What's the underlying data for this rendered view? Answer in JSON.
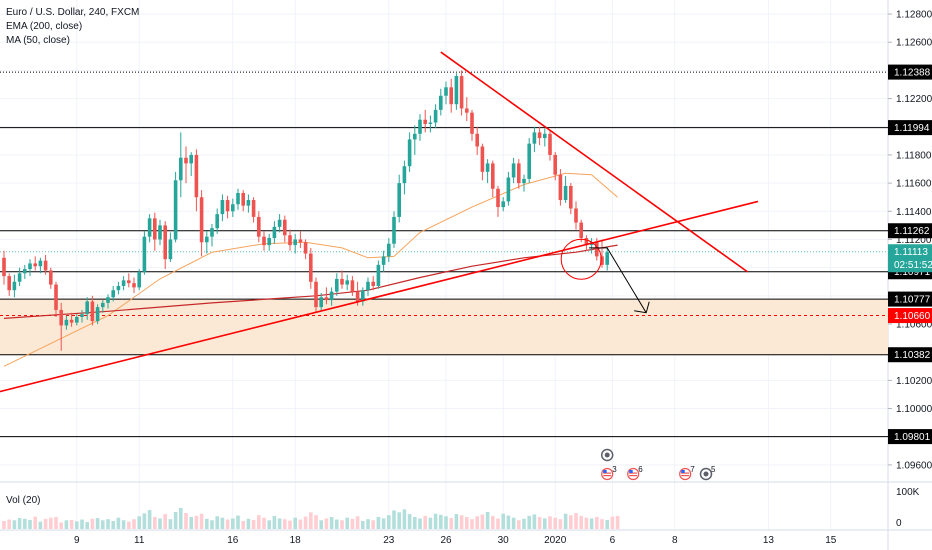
{
  "header": {
    "title": "Euro / U.S. Dollar, 240, FXCM",
    "indicator_1": "EMA (200, close)",
    "indicator_2": "MA (50, close)"
  },
  "volume_pane": {
    "label": "Vol (20)",
    "axis_ticks": [
      "100K",
      "0"
    ]
  },
  "chart_data": {
    "type": "candlestick",
    "symbol": "EURUSD",
    "timeframe": "240",
    "ylim": [
      1.095,
      1.1285
    ],
    "y_ticks": [
      "1.12800",
      "1.12600",
      "1.12400",
      "1.12200",
      "1.12000",
      "1.11800",
      "1.11600",
      "1.11400",
      "1.11200",
      "1.11000",
      "1.10800",
      "1.10600",
      "1.10400",
      "1.10200",
      "1.10000",
      "1.09800",
      "1.09600"
    ],
    "x_ticks": [
      "9",
      "11",
      "16",
      "18",
      "23",
      "26",
      "30",
      "2020",
      "6",
      "8",
      "13",
      "15"
    ],
    "horizontal_levels": [
      {
        "value": 1.12388,
        "label": "1.12388",
        "style": "dotted",
        "color": "#000000"
      },
      {
        "value": 1.11994,
        "label": "1.11994",
        "style": "solid",
        "color": "#000000"
      },
      {
        "value": 1.11262,
        "label": "1.11262",
        "style": "solid",
        "color": "#000000"
      },
      {
        "value": 1.10971,
        "label": "1.10971",
        "style": "solid",
        "color": "#000000"
      },
      {
        "value": 1.10777,
        "label": "1.10777",
        "style": "solid",
        "color": "#000000"
      },
      {
        "value": 1.1066,
        "label": "1.10660",
        "style": "dashed",
        "color": "#ff0000"
      },
      {
        "value": 1.10382,
        "label": "1.10382",
        "style": "solid",
        "color": "#000000"
      },
      {
        "value": 1.09801,
        "label": "1.09801",
        "style": "solid",
        "color": "#000000"
      }
    ],
    "zone": {
      "from": 1.10382,
      "to": 1.10777,
      "color": "#fbe9d6"
    },
    "current_price": {
      "value": 1.11113,
      "label": "1.11113",
      "countdown": "02:51:52",
      "color": "#26a69a"
    },
    "ohlc": [
      [
        1.1107,
        1.1112,
        1.1088,
        1.1094
      ],
      [
        1.1094,
        1.1096,
        1.108,
        1.1084
      ],
      [
        1.1084,
        1.1095,
        1.1079,
        1.109
      ],
      [
        1.109,
        1.11,
        1.1087,
        1.1096
      ],
      [
        1.1096,
        1.1102,
        1.1092,
        1.1099
      ],
      [
        1.1099,
        1.1106,
        1.1094,
        1.1103
      ],
      [
        1.1103,
        1.1108,
        1.1098,
        1.1101
      ],
      [
        1.1101,
        1.1107,
        1.1096,
        1.1105
      ],
      [
        1.1105,
        1.1109,
        1.1095,
        1.1098
      ],
      [
        1.1098,
        1.11,
        1.1085,
        1.1088
      ],
      [
        1.1088,
        1.109,
        1.1065,
        1.107
      ],
      [
        1.107,
        1.1075,
        1.1041,
        1.1059
      ],
      [
        1.1059,
        1.1066,
        1.1056,
        1.1063
      ],
      [
        1.1063,
        1.1068,
        1.1058,
        1.1061
      ],
      [
        1.1061,
        1.1067,
        1.1059,
        1.1065
      ],
      [
        1.1065,
        1.107,
        1.1061,
        1.1067
      ],
      [
        1.1067,
        1.1079,
        1.1063,
        1.1076
      ],
      [
        1.1076,
        1.108,
        1.1059,
        1.1062
      ],
      [
        1.1062,
        1.1074,
        1.106,
        1.1072
      ],
      [
        1.1072,
        1.1077,
        1.1068,
        1.1075
      ],
      [
        1.1075,
        1.1081,
        1.1071,
        1.1079
      ],
      [
        1.1079,
        1.1087,
        1.1076,
        1.1084
      ],
      [
        1.1084,
        1.109,
        1.1081,
        1.1087
      ],
      [
        1.1087,
        1.1094,
        1.1084,
        1.1091
      ],
      [
        1.1091,
        1.1096,
        1.1086,
        1.1089
      ],
      [
        1.1089,
        1.1093,
        1.1082,
        1.1086
      ],
      [
        1.1086,
        1.1099,
        1.1084,
        1.1097
      ],
      [
        1.1097,
        1.1126,
        1.1095,
        1.1122
      ],
      [
        1.1122,
        1.1138,
        1.1118,
        1.1135
      ],
      [
        1.1135,
        1.1139,
        1.1112,
        1.112
      ],
      [
        1.112,
        1.1134,
        1.1116,
        1.113
      ],
      [
        1.113,
        1.1133,
        1.1099,
        1.1106
      ],
      [
        1.1106,
        1.1125,
        1.1104,
        1.112
      ],
      [
        1.112,
        1.1168,
        1.1118,
        1.1162
      ],
      [
        1.1162,
        1.1196,
        1.115,
        1.1178
      ],
      [
        1.1178,
        1.1186,
        1.116,
        1.1174
      ],
      [
        1.1174,
        1.1182,
        1.1165,
        1.118
      ],
      [
        1.118,
        1.1184,
        1.114,
        1.115
      ],
      [
        1.115,
        1.1155,
        1.1108,
        1.1118
      ],
      [
        1.1118,
        1.1126,
        1.111,
        1.1122
      ],
      [
        1.1122,
        1.1131,
        1.1115,
        1.1128
      ],
      [
        1.1128,
        1.1142,
        1.1124,
        1.1138
      ],
      [
        1.1138,
        1.1152,
        1.1133,
        1.1148
      ],
      [
        1.1148,
        1.1151,
        1.1135,
        1.114
      ],
      [
        1.114,
        1.1149,
        1.1136,
        1.1145
      ],
      [
        1.1145,
        1.1156,
        1.1141,
        1.1153
      ],
      [
        1.1153,
        1.1155,
        1.114,
        1.1144
      ],
      [
        1.1144,
        1.1152,
        1.1139,
        1.1148
      ],
      [
        1.1148,
        1.115,
        1.1132,
        1.1136
      ],
      [
        1.1136,
        1.114,
        1.1118,
        1.1122
      ],
      [
        1.1122,
        1.1126,
        1.1112,
        1.1116
      ],
      [
        1.1116,
        1.1124,
        1.1112,
        1.1121
      ],
      [
        1.1121,
        1.1133,
        1.1117,
        1.1129
      ],
      [
        1.1129,
        1.1138,
        1.1125,
        1.1134
      ],
      [
        1.1134,
        1.1137,
        1.1118,
        1.1123
      ],
      [
        1.1123,
        1.1127,
        1.1112,
        1.1116
      ],
      [
        1.1116,
        1.1124,
        1.111,
        1.112
      ],
      [
        1.112,
        1.1126,
        1.1114,
        1.1118
      ],
      [
        1.1118,
        1.112,
        1.1106,
        1.111
      ],
      [
        1.111,
        1.1114,
        1.1085,
        1.109
      ],
      [
        1.109,
        1.1093,
        1.1068,
        1.1072
      ],
      [
        1.1072,
        1.1082,
        1.1069,
        1.1079
      ],
      [
        1.1079,
        1.1086,
        1.1074,
        1.1077
      ],
      [
        1.1077,
        1.1086,
        1.1073,
        1.1083
      ],
      [
        1.1083,
        1.1096,
        1.108,
        1.1092
      ],
      [
        1.1092,
        1.1098,
        1.1085,
        1.1088
      ],
      [
        1.1088,
        1.1095,
        1.1084,
        1.1091
      ],
      [
        1.1091,
        1.1094,
        1.108,
        1.1083
      ],
      [
        1.1083,
        1.109,
        1.1073,
        1.1076
      ],
      [
        1.1076,
        1.1086,
        1.1073,
        1.1084
      ],
      [
        1.1084,
        1.1093,
        1.108,
        1.109
      ],
      [
        1.109,
        1.1094,
        1.1084,
        1.1087
      ],
      [
        1.1087,
        1.1105,
        1.1085,
        1.1102
      ],
      [
        1.1102,
        1.1112,
        1.1097,
        1.1108
      ],
      [
        1.1108,
        1.1121,
        1.1104,
        1.1117
      ],
      [
        1.1117,
        1.114,
        1.1114,
        1.1136
      ],
      [
        1.1136,
        1.1166,
        1.1132,
        1.116
      ],
      [
        1.116,
        1.1176,
        1.1152,
        1.1172
      ],
      [
        1.1172,
        1.1196,
        1.1168,
        1.1191
      ],
      [
        1.1191,
        1.1201,
        1.118,
        1.1195
      ],
      [
        1.1195,
        1.1209,
        1.119,
        1.1205
      ],
      [
        1.1205,
        1.1212,
        1.1196,
        1.1202
      ],
      [
        1.1202,
        1.1208,
        1.1196,
        1.1203
      ],
      [
        1.1203,
        1.1216,
        1.1199,
        1.1212
      ],
      [
        1.1212,
        1.1227,
        1.1208,
        1.1222
      ],
      [
        1.1222,
        1.1232,
        1.1216,
        1.1228
      ],
      [
        1.1228,
        1.1234,
        1.121,
        1.1216
      ],
      [
        1.1216,
        1.1238,
        1.1212,
        1.1236
      ],
      [
        1.1236,
        1.124,
        1.1208,
        1.1213
      ],
      [
        1.1213,
        1.1221,
        1.1204,
        1.121
      ],
      [
        1.121,
        1.1212,
        1.119,
        1.1195
      ],
      [
        1.1195,
        1.12,
        1.118,
        1.1186
      ],
      [
        1.1186,
        1.1188,
        1.1162,
        1.1168
      ],
      [
        1.1168,
        1.1177,
        1.116,
        1.1174
      ],
      [
        1.1174,
        1.1176,
        1.115,
        1.1156
      ],
      [
        1.1156,
        1.1158,
        1.1136,
        1.1143
      ],
      [
        1.1143,
        1.115,
        1.114,
        1.1147
      ],
      [
        1.1147,
        1.1168,
        1.1144,
        1.1164
      ],
      [
        1.1164,
        1.1178,
        1.116,
        1.1174
      ],
      [
        1.1174,
        1.1177,
        1.1156,
        1.116
      ],
      [
        1.116,
        1.1166,
        1.1154,
        1.1163
      ],
      [
        1.1163,
        1.1192,
        1.116,
        1.1188
      ],
      [
        1.1188,
        1.12,
        1.1182,
        1.1196
      ],
      [
        1.1196,
        1.12,
        1.1187,
        1.1192
      ],
      [
        1.1192,
        1.1199,
        1.1186,
        1.1195
      ],
      [
        1.1195,
        1.1197,
        1.1176,
        1.118
      ],
      [
        1.118,
        1.1182,
        1.1162,
        1.1166
      ],
      [
        1.1166,
        1.117,
        1.1144,
        1.1148
      ],
      [
        1.1148,
        1.1165,
        1.1146,
        1.1158
      ],
      [
        1.1158,
        1.116,
        1.1138,
        1.1142
      ],
      [
        1.1142,
        1.1147,
        1.1127,
        1.1132
      ],
      [
        1.1132,
        1.1134,
        1.1118,
        1.1121
      ],
      [
        1.1121,
        1.1123,
        1.1112,
        1.1116
      ],
      [
        1.1116,
        1.1121,
        1.111,
        1.1118
      ],
      [
        1.1118,
        1.1121,
        1.1105,
        1.1108
      ],
      [
        1.1108,
        1.112,
        1.11,
        1.1102
      ],
      [
        1.1102,
        1.1115,
        1.1098,
        1.1111
      ]
    ],
    "ema200": [
      [
        0,
        1.1064
      ],
      [
        20,
        1.1069
      ],
      [
        40,
        1.1075
      ],
      [
        60,
        1.108
      ],
      [
        70,
        1.1084
      ],
      [
        80,
        1.1093
      ],
      [
        90,
        1.1101
      ],
      [
        100,
        1.1107
      ],
      [
        110,
        1.1111
      ],
      [
        118,
        1.1116
      ]
    ],
    "ma50": [
      [
        0,
        1.103
      ],
      [
        10,
        1.1048
      ],
      [
        20,
        1.1066
      ],
      [
        30,
        1.1092
      ],
      [
        40,
        1.1111
      ],
      [
        50,
        1.1117
      ],
      [
        58,
        1.1118
      ],
      [
        65,
        1.1114
      ],
      [
        70,
        1.1107
      ],
      [
        75,
        1.1108
      ],
      [
        80,
        1.1125
      ],
      [
        90,
        1.1143
      ],
      [
        100,
        1.1159
      ],
      [
        108,
        1.1167
      ],
      [
        113,
        1.1166
      ],
      [
        118,
        1.115
      ]
    ],
    "trendlines": [
      {
        "name": "uptrend",
        "color": "#ff0000",
        "points": [
          [
            -3,
            1.101
          ],
          [
            145,
            1.1147
          ]
        ]
      },
      {
        "name": "downtrend",
        "color": "#ff0000",
        "points": [
          [
            84,
            1.1253
          ],
          [
            143,
            1.1097
          ]
        ]
      }
    ],
    "projection_arrow": {
      "color": "#000000",
      "points": [
        [
          112.5,
          1.1114
        ],
        [
          116,
          1.1114
        ],
        [
          123.5,
          1.1068
        ]
      ]
    },
    "highlight_circle": {
      "center": [
        111,
        1.1106
      ],
      "color": "#ff0000"
    },
    "events": [
      {
        "bar": 116,
        "label": "",
        "kind": "clock"
      },
      {
        "bar": 116,
        "label": "3",
        "kind": "flag"
      },
      {
        "bar": 121,
        "label": "6",
        "kind": "flag"
      },
      {
        "bar": 131,
        "label": "7",
        "kind": "flag"
      },
      {
        "bar": 135,
        "label": "5",
        "kind": "clock"
      }
    ],
    "volume": [
      22,
      26,
      24,
      30,
      28,
      25,
      34,
      20,
      28,
      31,
      33,
      18,
      24,
      25,
      21,
      26,
      19,
      28,
      30,
      24,
      27,
      22,
      31,
      24,
      20,
      27,
      35,
      43,
      52,
      33,
      29,
      41,
      27,
      47,
      58,
      44,
      33,
      36,
      42,
      28,
      24,
      35,
      31,
      26,
      29,
      37,
      22,
      28,
      25,
      38,
      31,
      24,
      36,
      29,
      27,
      23,
      31,
      26,
      34,
      46,
      38,
      24,
      29,
      33,
      26,
      24,
      31,
      28,
      35,
      22,
      27,
      24,
      33,
      29,
      38,
      51,
      46,
      54,
      41,
      33,
      29,
      36,
      31,
      42,
      39,
      35,
      30,
      41,
      38,
      33,
      27,
      35,
      40,
      47,
      36,
      29,
      42,
      37,
      31,
      24,
      28,
      36,
      40,
      33,
      29,
      35,
      31,
      27,
      42,
      38,
      44,
      36,
      31,
      29,
      33,
      27,
      25,
      34,
      36
    ],
    "volume_axis": {
      "max_label": "100K",
      "min_label": "0"
    },
    "colors": {
      "up": "#26a69a",
      "down": "#ef5350",
      "ema200": "#c62828",
      "ma50": "#f7a35c",
      "axis_text": "#131722",
      "grid": "#f0f3fa"
    }
  }
}
